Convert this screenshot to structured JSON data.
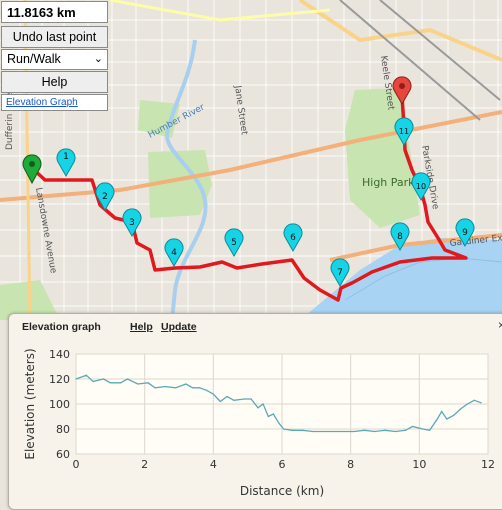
{
  "controls": {
    "distance": "11.8163 km",
    "undo_label": "Undo last point",
    "mode_selected": "Run/Walk",
    "help_label": "Help",
    "elevation_link": "Elevation Graph"
  },
  "map": {
    "labels": {
      "dufferin_st": "Dufferin Street",
      "lansdowne_ave": "Lansdowne Avenue",
      "jane_st": "Jane Street",
      "humber_river": "Humber River",
      "keele_st": "Keele Street",
      "parkside_dr": "Parkside Drive",
      "high_park": "High Park",
      "gardiner": "Gardiner Expy"
    },
    "markers": [
      "1",
      "2",
      "3",
      "4",
      "5",
      "6",
      "7",
      "8",
      "9",
      "10",
      "11"
    ],
    "colors": {
      "route": "#e0191e",
      "marker": "#17d3e6",
      "start": "#1faa3a",
      "end": "#e5473d",
      "water": "#a9d3f2",
      "park": "#c9e6b1"
    }
  },
  "elevation_panel": {
    "title": "Elevation graph",
    "help_link": "Help",
    "update_link": "Update",
    "close_glyph": "×"
  },
  "chart_data": {
    "type": "line",
    "xlabel": "Distance (km)",
    "ylabel": "Elevation (meters)",
    "xlim": [
      0,
      12
    ],
    "ylim": [
      60,
      140
    ],
    "x_ticks": [
      "0",
      "2",
      "4",
      "6",
      "8",
      "10",
      "12"
    ],
    "y_ticks": [
      "60",
      "80",
      "100",
      "120",
      "140"
    ],
    "grid": true,
    "series": [
      {
        "color": "#5aa9b6",
        "points": [
          [
            0.0,
            120
          ],
          [
            0.3,
            123
          ],
          [
            0.5,
            118
          ],
          [
            0.8,
            120
          ],
          [
            1.0,
            117
          ],
          [
            1.3,
            117
          ],
          [
            1.5,
            120
          ],
          [
            1.8,
            116
          ],
          [
            2.1,
            117
          ],
          [
            2.3,
            113
          ],
          [
            2.6,
            114
          ],
          [
            2.9,
            113
          ],
          [
            3.2,
            116
          ],
          [
            3.4,
            113
          ],
          [
            3.6,
            113
          ],
          [
            3.8,
            111
          ],
          [
            4.0,
            108
          ],
          [
            4.2,
            102
          ],
          [
            4.4,
            106
          ],
          [
            4.6,
            103
          ],
          [
            4.9,
            104
          ],
          [
            5.1,
            104
          ],
          [
            5.3,
            97
          ],
          [
            5.45,
            100
          ],
          [
            5.6,
            90
          ],
          [
            5.75,
            92
          ],
          [
            5.9,
            85
          ],
          [
            6.05,
            80
          ],
          [
            6.3,
            79
          ],
          [
            6.6,
            79
          ],
          [
            6.9,
            78
          ],
          [
            7.2,
            78
          ],
          [
            7.5,
            78
          ],
          [
            7.8,
            78
          ],
          [
            8.1,
            78
          ],
          [
            8.4,
            79
          ],
          [
            8.7,
            78
          ],
          [
            9.0,
            79
          ],
          [
            9.3,
            78
          ],
          [
            9.6,
            79
          ],
          [
            9.8,
            82
          ],
          [
            10.1,
            80
          ],
          [
            10.3,
            79
          ],
          [
            10.5,
            87
          ],
          [
            10.65,
            94
          ],
          [
            10.8,
            88
          ],
          [
            11.0,
            91
          ],
          [
            11.2,
            96
          ],
          [
            11.4,
            100
          ],
          [
            11.6,
            103
          ],
          [
            11.8,
            101
          ]
        ]
      }
    ]
  }
}
